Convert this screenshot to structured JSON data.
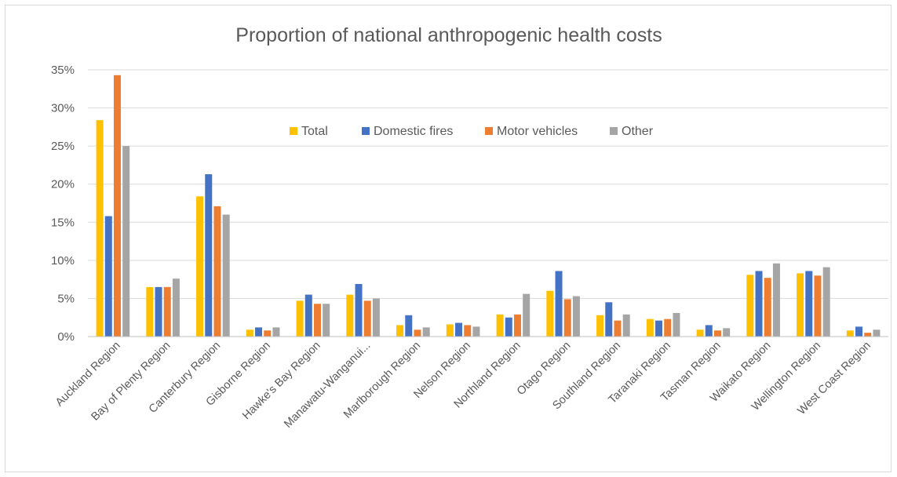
{
  "chart_data": {
    "type": "bar",
    "title": "Proportion of national anthropogenic health costs",
    "xlabel": "",
    "ylabel": "",
    "ylim": [
      0,
      35
    ],
    "yticks": [
      "0%",
      "5%",
      "10%",
      "15%",
      "20%",
      "25%",
      "30%",
      "35%"
    ],
    "grid": true,
    "legend_position": "top-center",
    "categories": [
      "Auckland Region",
      "Bay of Plenty Region",
      "Canterbury Region",
      "Gisborne Region",
      "Hawke's Bay Region",
      "Manawatu-Wanganui...",
      "Marlborough Region",
      "Nelson Region",
      "Northland Region",
      "Otago Region",
      "Southland Region",
      "Taranaki Region",
      "Tasman Region",
      "Waikato Region",
      "Wellington Region",
      "West Coast Region"
    ],
    "series": [
      {
        "name": "Total",
        "color": "#FFC000",
        "values": [
          28.4,
          6.5,
          18.4,
          0.9,
          4.7,
          5.5,
          1.5,
          1.6,
          2.9,
          6.0,
          2.8,
          2.3,
          0.9,
          8.1,
          8.3,
          0.8
        ]
      },
      {
        "name": "Domestic fires",
        "color": "#4472C4",
        "values": [
          15.8,
          6.5,
          21.3,
          1.2,
          5.5,
          6.9,
          2.8,
          1.8,
          2.5,
          8.6,
          4.5,
          2.1,
          1.5,
          8.6,
          8.6,
          1.3
        ]
      },
      {
        "name": "Motor vehicles",
        "color": "#ED7D31",
        "values": [
          34.3,
          6.5,
          17.1,
          0.8,
          4.3,
          4.7,
          0.9,
          1.5,
          2.9,
          4.9,
          2.1,
          2.3,
          0.8,
          7.7,
          8.0,
          0.5
        ]
      },
      {
        "name": "Other",
        "color": "#A5A5A5",
        "values": [
          25.0,
          7.6,
          16.0,
          1.2,
          4.3,
          5.0,
          1.2,
          1.3,
          5.6,
          5.3,
          2.9,
          3.1,
          1.1,
          9.6,
          9.1,
          0.9
        ]
      }
    ]
  }
}
